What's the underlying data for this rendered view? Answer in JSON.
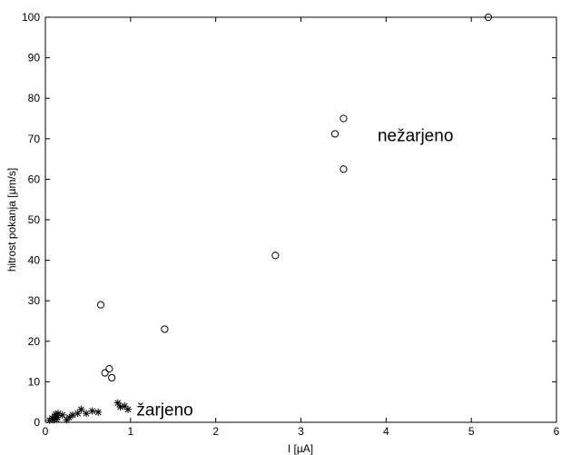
{
  "chart_data": {
    "type": "scatter",
    "xlabel": "I [µA]",
    "ylabel": "hitrost pokanja [µm/s]",
    "xlim": [
      0,
      6
    ],
    "ylim": [
      0,
      100
    ],
    "xticks": [
      0,
      1,
      2,
      3,
      4,
      5,
      6
    ],
    "yticks": [
      0,
      10,
      20,
      30,
      40,
      50,
      60,
      70,
      80,
      90,
      100
    ],
    "grid": false,
    "colors": {
      "axes": "#000000",
      "markers": "#000000",
      "background": "#ffffff"
    },
    "series": [
      {
        "marker": "circle",
        "x": [
          0.65,
          0.7,
          0.75,
          0.78,
          1.4,
          2.7,
          3.4,
          3.5,
          3.5,
          5.2
        ],
        "y": [
          29,
          12.2,
          13.2,
          11,
          23,
          41.2,
          71.2,
          75,
          62.5,
          100
        ]
      },
      {
        "marker": "star",
        "x": [
          0.05,
          0.08,
          0.1,
          0.11,
          0.12,
          0.13,
          0.14,
          0.15,
          0.2,
          0.25,
          0.28,
          0.32,
          0.38,
          0.42,
          0.48,
          0.55,
          0.62,
          0.85,
          0.88,
          0.93,
          0.97
        ],
        "y": [
          0.5,
          1,
          0.6,
          1.5,
          2,
          0.8,
          1.2,
          2.2,
          1.8,
          0.6,
          1.2,
          1.8,
          2.2,
          3.2,
          2.2,
          2.8,
          2.5,
          4.8,
          3.8,
          4,
          3.2
        ]
      }
    ],
    "annotations": [
      {
        "text": "nežarjeno",
        "x": 3.9,
        "y": 71
      },
      {
        "text": "žarjeno",
        "x": 1.07,
        "y": 3.2
      }
    ]
  }
}
